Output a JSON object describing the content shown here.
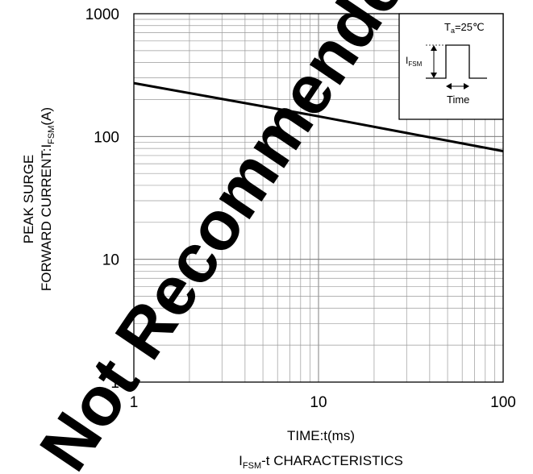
{
  "chart_data": {
    "type": "line",
    "title": "I_FSM-t CHARACTERISTICS",
    "title_parts": {
      "main": "I",
      "sub": "FSM",
      "rest": "-t CHARACTERISTICS"
    },
    "xlabel": "TIME:t(ms)",
    "ylabel_line1": "PEAK SURGE",
    "ylabel_line2": {
      "main": "FORWARD CURRENT:I",
      "sub": "FSM",
      "rest": "(A)"
    },
    "x_scale": "log",
    "y_scale": "log",
    "xlim": [
      1,
      100
    ],
    "ylim": [
      1,
      1000
    ],
    "grid": true,
    "x_ticks": [
      {
        "value": 1,
        "label": "1"
      },
      {
        "value": 10,
        "label": "10"
      },
      {
        "value": 100,
        "label": "100"
      }
    ],
    "y_ticks": [
      {
        "value": 1,
        "label": "1"
      },
      {
        "value": 10,
        "label": "10"
      },
      {
        "value": 100,
        "label": "100"
      },
      {
        "value": 1000,
        "label": "1000"
      }
    ],
    "series": [
      {
        "x": [
          1,
          10,
          100
        ],
        "y": [
          272,
          146,
          76
        ],
        "color": "#000000"
      }
    ],
    "inset": {
      "placement": "top-right",
      "condition": {
        "main": "T",
        "sub": "a",
        "rest": "=25℃"
      },
      "pulse_label": {
        "main": "I",
        "sub": "FSM"
      },
      "time_label": "Time"
    }
  },
  "watermark": {
    "text": "Not Recommended for New Designs",
    "color": "#000000"
  }
}
